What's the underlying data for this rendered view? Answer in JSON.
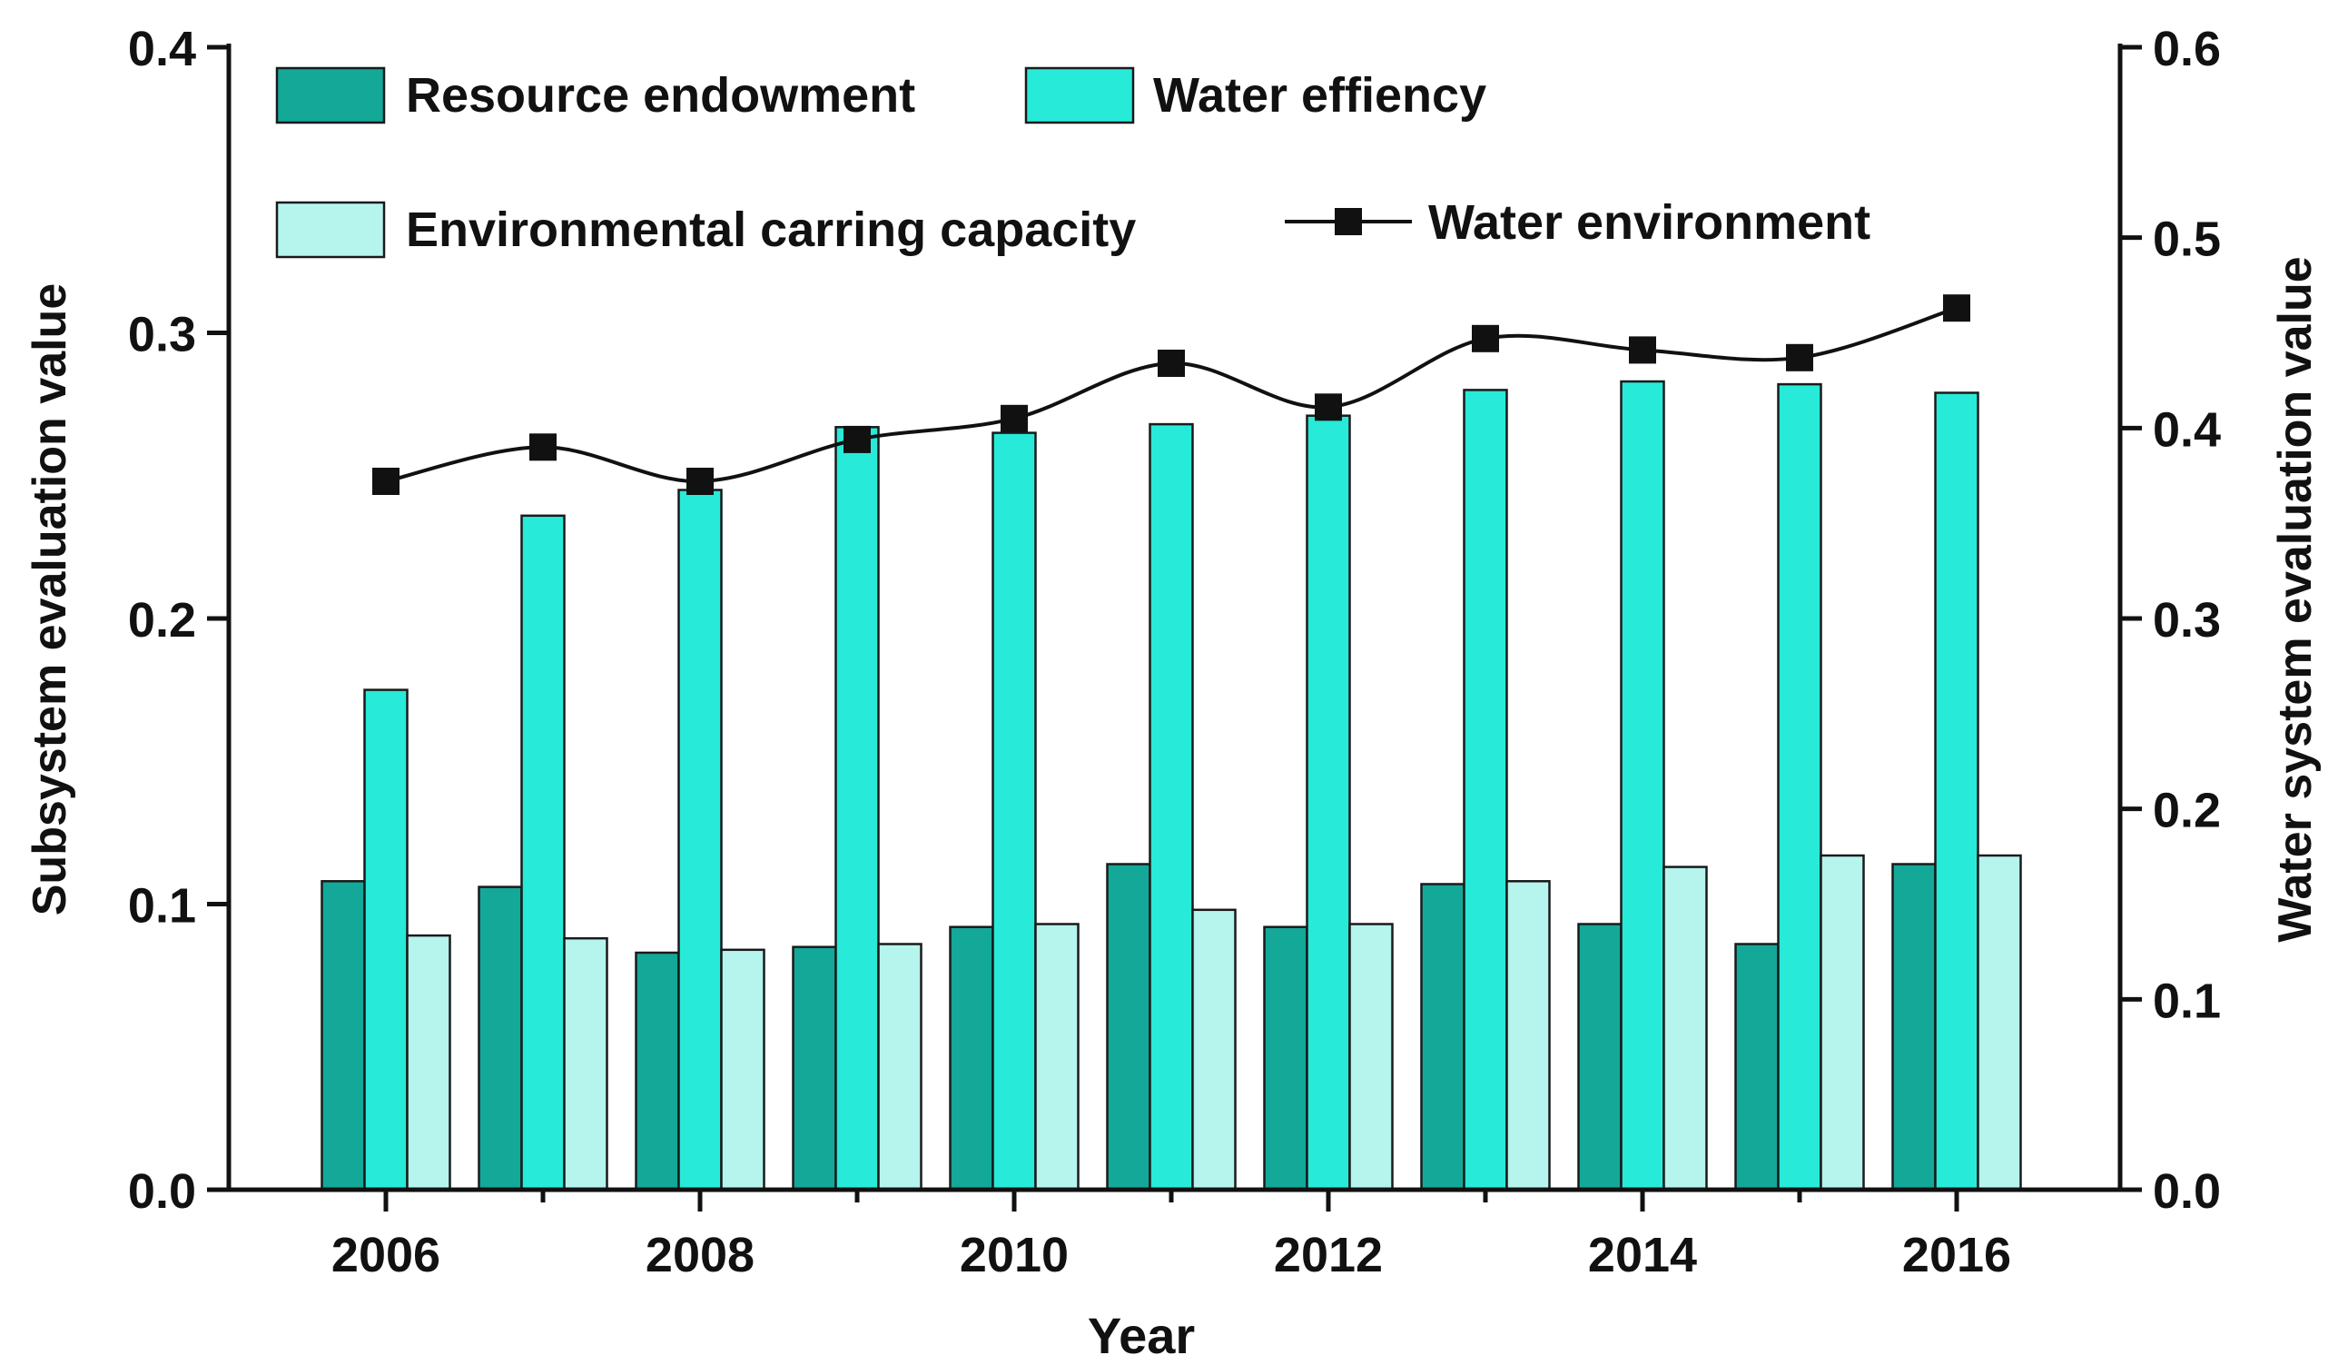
{
  "chart_data": {
    "type": "bar",
    "title": "",
    "xlabel": "Year",
    "ylabel": "Subsystem evaluation value",
    "y2label": "Water system evaluation value",
    "ylim": [
      0,
      0.4
    ],
    "y2lim": [
      0,
      0.6
    ],
    "yticks": [
      "0.0",
      "0.1",
      "0.2",
      "0.3",
      "0.4"
    ],
    "y2ticks": [
      "0.0",
      "0.1",
      "0.2",
      "0.3",
      "0.4",
      "0.5",
      "0.6"
    ],
    "xticks": [
      "2006",
      "2008",
      "2010",
      "2012",
      "2014",
      "2016"
    ],
    "categories": [
      "2006",
      "2007",
      "2008",
      "2009",
      "2010",
      "2011",
      "2012",
      "2013",
      "2014",
      "2015",
      "2016"
    ],
    "series": [
      {
        "name": "Resource endowment",
        "type": "bar",
        "axis": "left",
        "color": "#14a898",
        "values": [
          0.108,
          0.106,
          0.083,
          0.085,
          0.092,
          0.114,
          0.092,
          0.107,
          0.093,
          0.086,
          0.114
        ]
      },
      {
        "name": "Water effiency",
        "type": "bar",
        "axis": "left",
        "color": "#28ead8",
        "values": [
          0.175,
          0.236,
          0.245,
          0.267,
          0.265,
          0.268,
          0.271,
          0.28,
          0.283,
          0.282,
          0.279
        ]
      },
      {
        "name": "Environmental carring capacity",
        "type": "bar",
        "axis": "left",
        "color": "#b6f4ee",
        "values": [
          0.089,
          0.088,
          0.084,
          0.086,
          0.093,
          0.098,
          0.093,
          0.108,
          0.113,
          0.117,
          0.117
        ]
      },
      {
        "name": "Water environment",
        "type": "line",
        "axis": "right",
        "color": "#111111",
        "marker": "square",
        "values": [
          0.372,
          0.39,
          0.372,
          0.394,
          0.405,
          0.434,
          0.411,
          0.447,
          0.441,
          0.437,
          0.463
        ]
      }
    ],
    "legend": "top-left"
  }
}
